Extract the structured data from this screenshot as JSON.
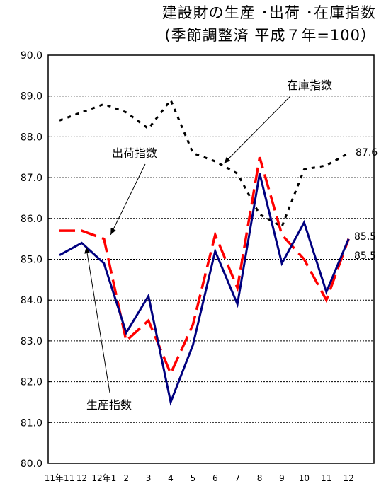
{
  "chart_data": {
    "type": "line",
    "title_line1": "建設財の生産 ･出荷 ･在庫指数",
    "title_line2": "(季節調整済 平成７年=100）",
    "ylim": [
      80.0,
      90.0
    ],
    "yticks": [
      "80.0",
      "81.0",
      "82.0",
      "83.0",
      "84.0",
      "85.0",
      "86.0",
      "87.0",
      "88.0",
      "89.0",
      "90.0"
    ],
    "categories": [
      "11年11",
      "12",
      "12年1",
      "2",
      "3",
      "4",
      "5",
      "6",
      "7",
      "8",
      "9",
      "10",
      "11",
      "12"
    ],
    "grid": true,
    "series": [
      {
        "name": "生産指数",
        "style": "solid",
        "color": "#00007F",
        "values": [
          85.1,
          85.4,
          84.9,
          83.2,
          84.1,
          81.5,
          82.9,
          85.2,
          83.9,
          87.1,
          84.9,
          85.9,
          84.2,
          85.5
        ]
      },
      {
        "name": "出荷指数",
        "style": "dashed",
        "color": "#FF0000",
        "values": [
          85.7,
          85.7,
          85.5,
          83.0,
          83.5,
          82.2,
          83.4,
          85.6,
          84.3,
          87.5,
          85.6,
          85.0,
          84.0,
          85.5
        ]
      },
      {
        "name": "在庫指数",
        "style": "dotted",
        "color": "#000000",
        "values": [
          88.4,
          88.6,
          88.8,
          88.6,
          88.2,
          88.9,
          87.6,
          87.4,
          87.1,
          86.1,
          85.8,
          87.2,
          87.3,
          87.6
        ]
      }
    ],
    "end_labels": [
      "87.6",
      "85.5",
      "85.5"
    ]
  }
}
